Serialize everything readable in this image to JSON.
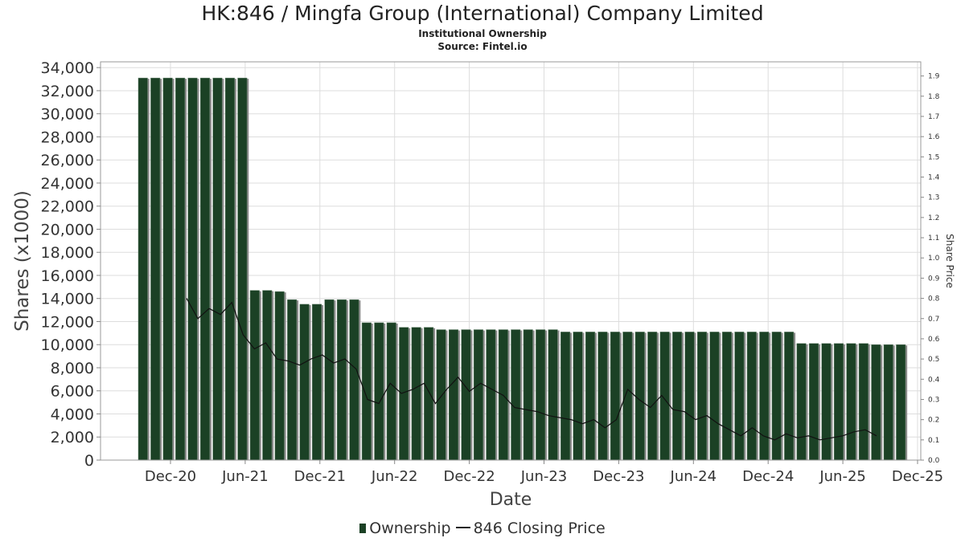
{
  "chart_data": {
    "type": "bar",
    "title": "HK:846 / Mingfa Group (International) Company Limited",
    "subtitle_lines": [
      "Institutional Ownership",
      "Source: Fintel.io"
    ],
    "xlabel": "Date",
    "ylabel": "Shares (x1000)",
    "y2label": "Share Price",
    "ylim": [
      0,
      34500
    ],
    "y2lim": [
      0,
      1.97
    ],
    "yticks": [
      "0",
      "2,000",
      "4,000",
      "6,000",
      "8,000",
      "10,000",
      "12,000",
      "14,000",
      "16,000",
      "18,000",
      "20,000",
      "22,000",
      "24,000",
      "26,000",
      "28,000",
      "30,000",
      "32,000",
      "34,000"
    ],
    "y2ticks": [
      "0.0",
      "0.1",
      "0.2",
      "0.3",
      "0.4",
      "0.5",
      "0.6",
      "0.7",
      "0.8",
      "0.9",
      "1.0",
      "1.1",
      "1.2",
      "1.3",
      "1.4",
      "1.5",
      "1.6",
      "1.7",
      "1.8",
      "1.9"
    ],
    "xticks": [
      "Dec-20",
      "Jun-21",
      "Dec-21",
      "Jun-22",
      "Dec-22",
      "Jun-23",
      "Dec-23",
      "Jun-24",
      "Dec-24",
      "Jun-25",
      "Dec-25"
    ],
    "grid": true,
    "legend_position": "bottom",
    "legend": [
      "Ownership",
      "846 Closing Price"
    ],
    "colors": {
      "bar": "#1b4125",
      "bar_shadow": "#8a8a8a",
      "price_line": "#111111",
      "grid": "#dddddd"
    },
    "series": [
      {
        "name": "Ownership",
        "values": [
          33100,
          33100,
          33100,
          33100,
          33100,
          33100,
          33100,
          33100,
          33100,
          14700,
          14700,
          14600,
          13900,
          13500,
          13500,
          13900,
          13900,
          13900,
          11900,
          11900,
          11900,
          11500,
          11500,
          11500,
          11300,
          11300,
          11300,
          11300,
          11300,
          11300,
          11300,
          11300,
          11300,
          11300,
          11100,
          11100,
          11100,
          11100,
          11100,
          11100,
          11100,
          11100,
          11100,
          11100,
          11100,
          11100,
          11100,
          11100,
          11100,
          11100,
          11100,
          11100,
          11100,
          10100,
          10100,
          10100,
          10100,
          10100,
          10100,
          10000,
          10000,
          10000
        ]
      },
      {
        "name": "846 Closing Price",
        "values": [
          0.8,
          0.7,
          0.75,
          0.72,
          0.78,
          0.62,
          0.55,
          0.58,
          0.5,
          0.49,
          0.47,
          0.5,
          0.52,
          0.48,
          0.5,
          0.45,
          0.3,
          0.28,
          0.38,
          0.33,
          0.35,
          0.38,
          0.28,
          0.35,
          0.41,
          0.34,
          0.38,
          0.35,
          0.32,
          0.26,
          0.25,
          0.24,
          0.22,
          0.21,
          0.2,
          0.18,
          0.2,
          0.16,
          0.2,
          0.35,
          0.3,
          0.26,
          0.32,
          0.25,
          0.24,
          0.2,
          0.22,
          0.18,
          0.15,
          0.12,
          0.16,
          0.12,
          0.1,
          0.13,
          0.11,
          0.12,
          0.1,
          0.11,
          0.12,
          0.14,
          0.15,
          0.12
        ]
      }
    ]
  }
}
